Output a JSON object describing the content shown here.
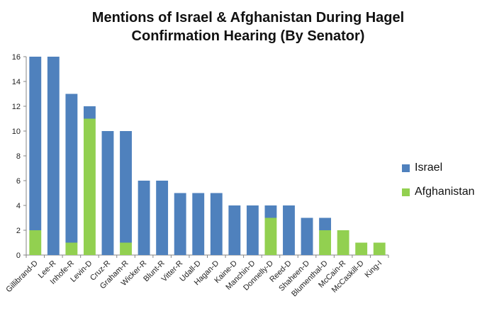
{
  "chart_data": {
    "type": "bar",
    "stacked": true,
    "title": "Mentions of Israel & Afghanistan During Hagel Confirmation Hearing (By Senator)",
    "title_lines": [
      "Mentions of Israel & Afghanistan During Hagel",
      "Confirmation Hearing (By Senator)"
    ],
    "xlabel": "",
    "ylabel": "",
    "ylim": [
      0,
      16
    ],
    "yticks": [
      0,
      2,
      4,
      6,
      8,
      10,
      12,
      14,
      16
    ],
    "grid": false,
    "legend_position": "right",
    "categories": [
      "Gillibrand-D",
      "Lee-R",
      "Inhofe-R",
      "Levin-D",
      "Cruz-R",
      "Graham-R",
      "Wicker-R",
      "Blunt-R",
      "Vitter-R",
      "Udall-D",
      "Hagan-D",
      "Kaine-D",
      "Manchin-D",
      "Donnelly-D",
      "Reed-D",
      "Shaheen-D",
      "Blumenthal-D",
      "McCain-R",
      "McCaskill-D",
      "King-I"
    ],
    "series": [
      {
        "name": "Afghanistan",
        "color": "#92d050",
        "values": [
          2,
          0,
          1,
          11,
          0,
          1,
          0,
          0,
          0,
          0,
          0,
          0,
          0,
          3,
          0,
          0,
          2,
          2,
          1,
          1
        ]
      },
      {
        "name": "Israel",
        "color": "#4f81bd",
        "values": [
          14,
          16,
          12,
          1,
          10,
          9,
          6,
          6,
          5,
          5,
          5,
          4,
          4,
          1,
          4,
          3,
          1,
          0,
          0,
          0
        ]
      }
    ],
    "legend": [
      "Israel",
      "Afghanistan"
    ]
  }
}
